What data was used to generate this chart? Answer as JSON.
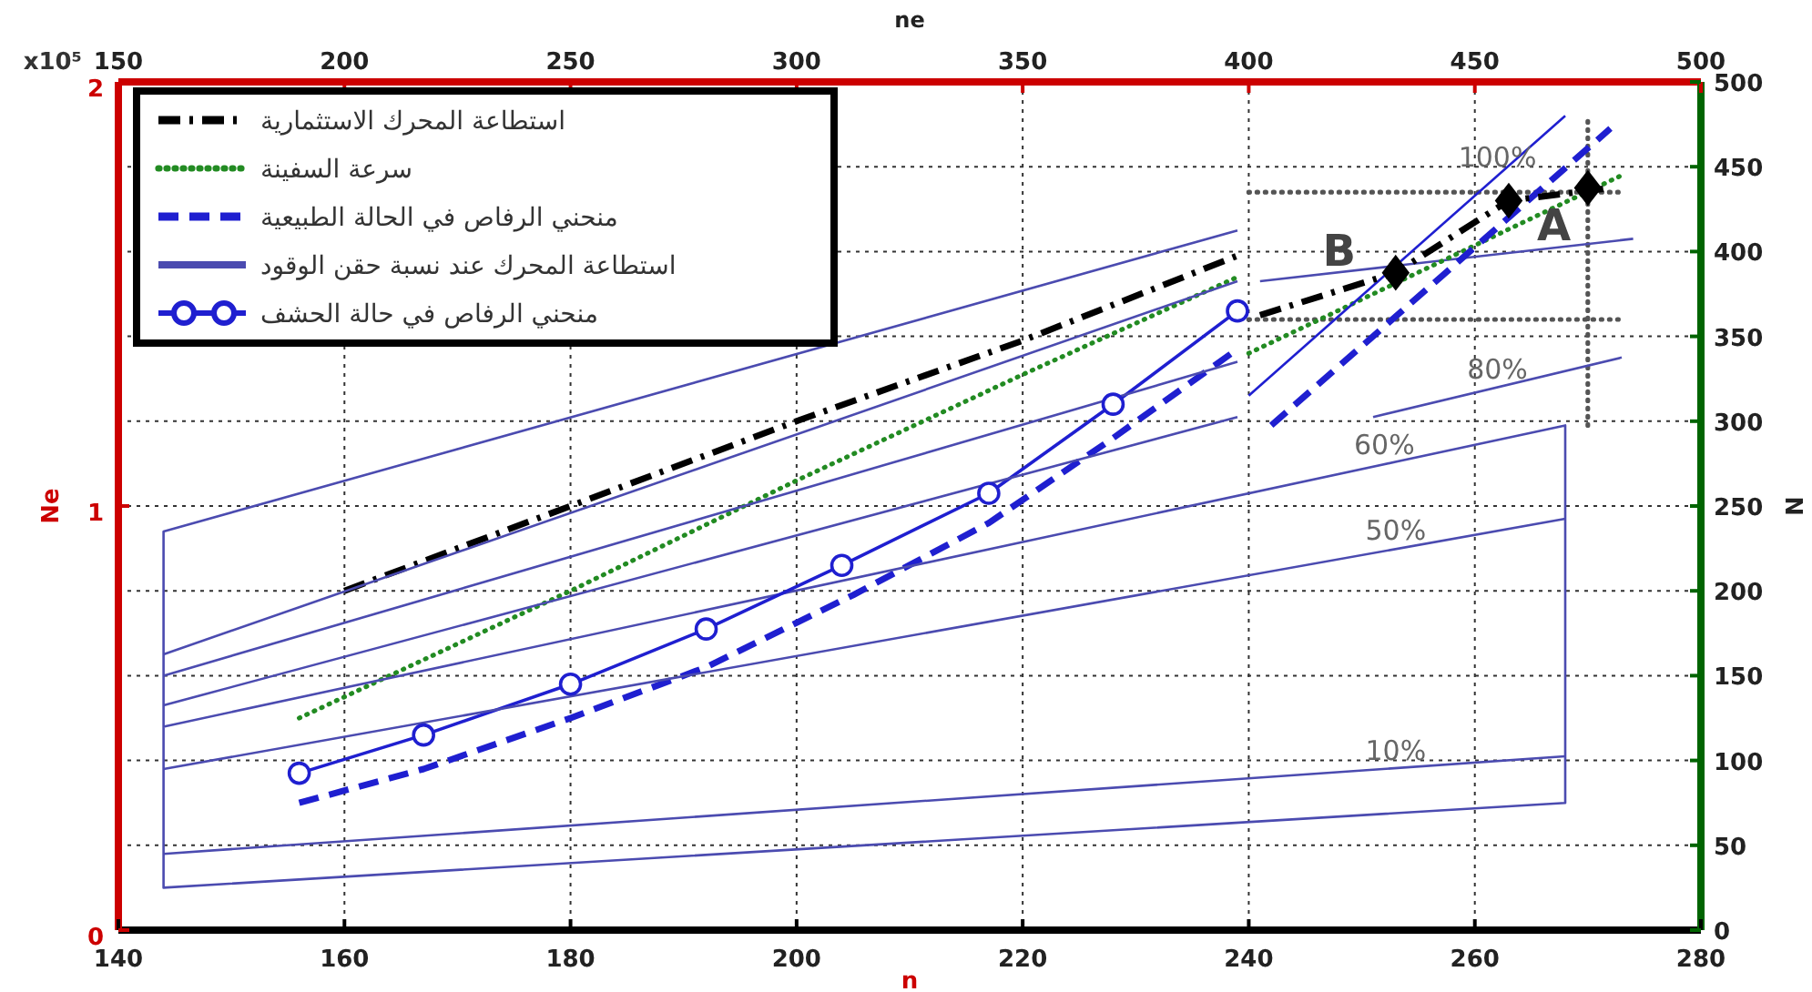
{
  "chart_data": {
    "type": "line",
    "xlabel": "n",
    "ylabel": "Ne",
    "y2label": "N",
    "x2label": "ne",
    "xlim": [
      140,
      280
    ],
    "xticks": [
      140,
      160,
      180,
      200,
      220,
      240,
      260,
      280
    ],
    "x2lim": [
      150,
      500
    ],
    "x2ticks": [
      150,
      200,
      250,
      300,
      350,
      400,
      450,
      500
    ],
    "ylim": [
      0,
      2
    ],
    "yticks": [
      0,
      1,
      2
    ],
    "y2lim": [
      0,
      500
    ],
    "y2ticks": [
      0,
      50,
      100,
      150,
      200,
      250,
      300,
      350,
      400,
      450,
      500
    ],
    "grid": true,
    "legend": "top left",
    "series": [
      {
        "name": "استطاعة المحرك الاستثمارية",
        "color": "#000000",
        "line_style": "dashdot",
        "x": [
          160,
          180,
          200,
          220,
          239
        ],
        "values": [
          0.8,
          1.0,
          1.2,
          1.39,
          1.59
        ]
      },
      {
        "name": "سرعة السفينة",
        "color": "#228b22",
        "line_style": "dotted",
        "x": [
          156,
          180,
          200,
          220,
          239
        ],
        "values": [
          0.5,
          0.8,
          1.06,
          1.31,
          1.54
        ]
      },
      {
        "name": "منحني الرفاص في الحالة الطبيعية",
        "color": "#1f1fd0",
        "line_style": "dashed",
        "x": [
          156,
          167,
          180,
          192,
          205,
          217,
          228,
          239
        ],
        "values": [
          0.3,
          0.38,
          0.5,
          0.62,
          0.79,
          0.96,
          1.16,
          1.37
        ]
      },
      {
        "name": "استطاعة المحرك عند نسبة حقن الوقود",
        "color": "#4b4bb0",
        "line_style": "solid",
        "x": [
          239,
          144,
          144,
          268,
          268,
          144
        ],
        "values": [
          1.65,
          0.94,
          0.1,
          0.3,
          1.19,
          0.48
        ]
      },
      {
        "name": "منحني الرفاص في حالة الحشف",
        "color": "#1f1fd0",
        "line_style": "solid",
        "marker": "circle",
        "x": [
          156,
          167,
          180,
          192,
          204,
          217,
          228,
          239
        ],
        "values": [
          0.37,
          0.46,
          0.58,
          0.71,
          0.86,
          1.03,
          1.24,
          1.46
        ]
      },
      {
        "color": "#4b4bb0",
        "line_style": "solid",
        "x": [
          144,
          239
        ],
        "values": [
          0.65,
          1.53
        ]
      },
      {
        "color": "#4b4bb0",
        "line_style": "solid",
        "x": [
          144,
          239
        ],
        "values": [
          0.6,
          1.34
        ]
      },
      {
        "color": "#4b4bb0",
        "line_style": "solid",
        "x": [
          144,
          239
        ],
        "values": [
          0.53,
          1.21
        ]
      },
      {
        "color": "#4b4bb0",
        "line_style": "solid",
        "x": [
          144,
          268
        ],
        "values": [
          0.38,
          0.97
        ]
      },
      {
        "color": "#4b4bb0",
        "line_style": "solid",
        "x": [
          144,
          268
        ],
        "values": [
          0.18,
          0.41
        ]
      },
      {
        "color": "#555555",
        "line_style": "dotted",
        "x": [
          240,
          273
        ],
        "values": [
          1.74,
          1.74
        ]
      },
      {
        "color": "#555555",
        "line_style": "dotted",
        "x": [
          240,
          273
        ],
        "values": [
          1.44,
          1.44
        ]
      },
      {
        "color": "#555555",
        "line_style": "dotted",
        "x": [
          270,
          270
        ],
        "values": [
          1.19,
          1.92
        ]
      },
      {
        "color": "#4b4bb0",
        "line_style": "solid",
        "x": [
          241,
          274
        ],
        "values": [
          1.53,
          1.63
        ]
      },
      {
        "color": "#4b4bb0",
        "line_style": "solid",
        "x": [
          251,
          273
        ],
        "values": [
          1.21,
          1.35
        ]
      },
      {
        "color": "#228b22",
        "line_style": "dotted",
        "x": [
          240,
          273
        ],
        "values": [
          1.36,
          1.78
        ]
      },
      {
        "color": "#1f1fd0",
        "line_style": "solid",
        "x": [
          240,
          268
        ],
        "values": [
          1.26,
          1.92
        ]
      },
      {
        "color": "#1f1fd0",
        "line_style": "dashed",
        "x": [
          242,
          272
        ],
        "values": [
          1.19,
          1.89
        ]
      },
      {
        "color": "#000000",
        "line_style": "dashdot",
        "x": [
          241,
          253,
          263,
          272
        ],
        "values": [
          1.45,
          1.55,
          1.72,
          1.75
        ]
      },
      {
        "type": "scatter",
        "color": "#000000",
        "marker": "diamond",
        "x": [
          253,
          263,
          270
        ],
        "values": [
          1.55,
          1.72,
          1.75
        ]
      }
    ],
    "annotations": [
      "x10⁵",
      {
        "text": "100%",
        "x": 262,
        "y": 1.78
      },
      {
        "text": "80%",
        "x": 262,
        "y": 1.28
      },
      {
        "text": "60%",
        "x": 252,
        "y": 1.1
      },
      {
        "text": "50%",
        "x": 253,
        "y": 0.9
      },
      {
        "text": "10%",
        "x": 253,
        "y": 0.38
      },
      {
        "text": "B",
        "x": 248,
        "y": 1.55
      },
      {
        "text": "A",
        "x": 267,
        "y": 1.61
      }
    ]
  }
}
